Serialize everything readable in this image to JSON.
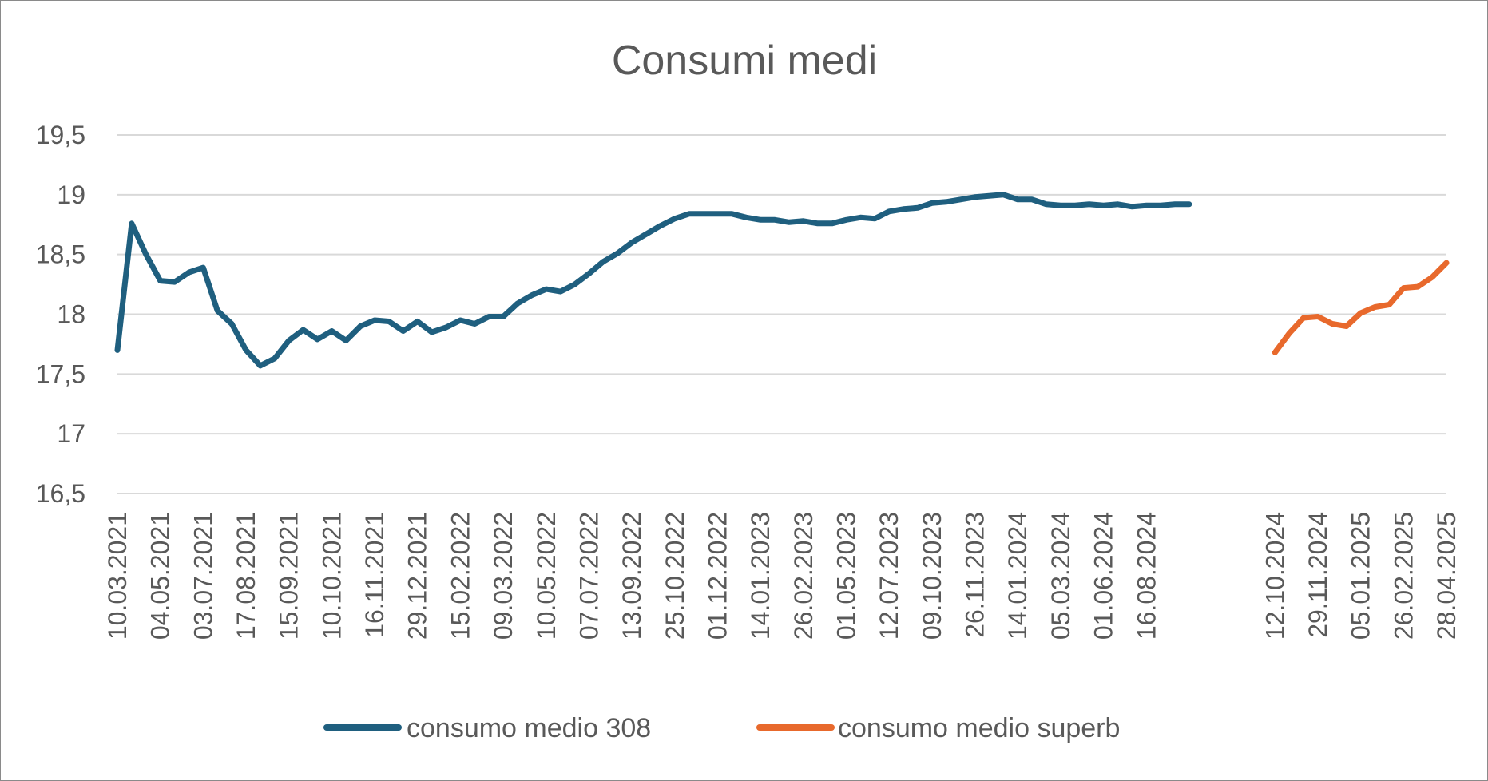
{
  "chart_data": {
    "type": "line",
    "title": "Consumi medi",
    "ylim": [
      16.5,
      19.5
    ],
    "yticks": [
      "16,5",
      "17",
      "17,5",
      "18",
      "18,5",
      "19",
      "19,5"
    ],
    "ytick_values": [
      16.5,
      17,
      17.5,
      18,
      18.5,
      19,
      19.5
    ],
    "grid": true,
    "legend_position": "bottom",
    "x_labels": [
      "10.03.2021",
      "04.05.2021",
      "03.07.2021",
      "17.08.2021",
      "15.09.2021",
      "10.10.2021",
      "16.11.2021",
      "29.12.2021",
      "15.02.2022",
      "09.03.2022",
      "10.05.2022",
      "07.07.2022",
      "13.09.2022",
      "25.10.2022",
      "01.12.2022",
      "14.01.2023",
      "26.02.2023",
      "01.05.2023",
      "12.07.2023",
      "09.10.2023",
      "26.11.2023",
      "14.01.2024",
      "05.03.2024",
      "01.06.2024",
      "16.08.2024",
      "12.10.2024",
      "29.11.2024",
      "05.01.2025",
      "26.02.2025",
      "28.04.2025"
    ],
    "series": [
      {
        "name": "consumo medio 308",
        "color": "#1f5f7f",
        "values": [
          17.7,
          18.76,
          18.5,
          18.28,
          18.27,
          18.35,
          18.39,
          18.03,
          17.92,
          17.7,
          17.57,
          17.63,
          17.78,
          17.87,
          17.79,
          17.86,
          17.78,
          17.9,
          17.95,
          17.94,
          17.86,
          17.94,
          17.85,
          17.89,
          17.95,
          17.92,
          17.98,
          17.98,
          18.09,
          18.16,
          18.21,
          18.19,
          18.25,
          18.34,
          18.44,
          18.51,
          18.6,
          18.67,
          18.74,
          18.8,
          18.84,
          18.84,
          18.84,
          18.84,
          18.81,
          18.79,
          18.79,
          18.77,
          18.78,
          18.76,
          18.76,
          18.79,
          18.81,
          18.8,
          18.86,
          18.88,
          18.89,
          18.93,
          18.94,
          18.96,
          18.98,
          18.99,
          19.0,
          18.96,
          18.96,
          18.92,
          18.91,
          18.91,
          18.92,
          18.91,
          18.92,
          18.9,
          18.91,
          18.91,
          18.92,
          18.92
        ]
      },
      {
        "name": "consumo medio superb",
        "color": "#e8692c",
        "values": [
          17.68,
          17.84,
          17.97,
          17.98,
          17.92,
          17.9,
          18.01,
          18.06,
          18.08,
          18.22,
          18.23,
          18.31,
          18.43
        ]
      }
    ]
  }
}
